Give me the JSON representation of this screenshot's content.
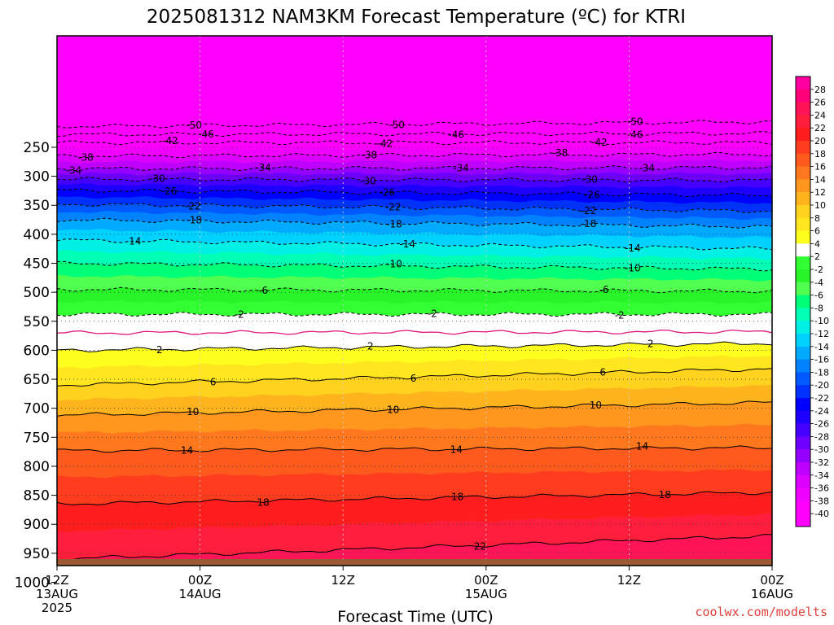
{
  "chart_data": {
    "type": "heatmap",
    "title": "2025081312 NAM3KM Forecast Temperature (ºC) for KTRI",
    "xlabel": "Forecast Time (UTC)",
    "ylabel": "",
    "credit": "coolwx.com/modelts",
    "x_ticks": [
      {
        "hour": 0,
        "lines": [
          "12Z",
          "13AUG",
          "2025"
        ]
      },
      {
        "hour": 12,
        "lines": [
          "00Z",
          "14AUG"
        ]
      },
      {
        "hour": 24,
        "lines": [
          "12Z"
        ]
      },
      {
        "hour": 36,
        "lines": [
          "00Z",
          "15AUG"
        ]
      },
      {
        "hour": 48,
        "lines": [
          "12Z"
        ]
      },
      {
        "hour": 60,
        "lines": [
          "00Z",
          "16AUG"
        ]
      }
    ],
    "xlim": [
      0,
      60
    ],
    "y_ticks": [
      250,
      300,
      350,
      400,
      450,
      500,
      550,
      600,
      650,
      700,
      750,
      800,
      850,
      900,
      950,
      1000
    ],
    "ylim_hPa": [
      200,
      1050
    ],
    "surface_pressure_hPa": 960,
    "colorbar_labels": [
      28,
      26,
      24,
      22,
      20,
      18,
      16,
      14,
      12,
      10,
      8,
      6,
      4,
      2,
      -2,
      -4,
      -6,
      -8,
      -10,
      -12,
      -14,
      -16,
      -18,
      -20,
      -22,
      -24,
      -26,
      -28,
      -30,
      -32,
      -34,
      -36,
      -38,
      -40
    ],
    "band_colors": {
      "28": "#ff00a0",
      "26": "#ff0078",
      "24": "#ff1458",
      "22": "#ff1e3c",
      "20": "#ff1e1e",
      "18": "#ff3c1e",
      "16": "#ff5a1e",
      "14": "#ff781e",
      "12": "#ff961e",
      "10": "#ffb41e",
      "8": "#ffd21e",
      "6": "#ffe61e",
      "4": "#ffff1e",
      "2": "#ffffff",
      "-2": "#32ff32",
      "-4": "#28f528",
      "-6": "#50ff50",
      "-8": "#00ff78",
      "-10": "#00ffb4",
      "-12": "#00f0e6",
      "-14": "#00d2ff",
      "-16": "#00aaff",
      "-18": "#0082ff",
      "-20": "#005aff",
      "-22": "#0032ff",
      "-24": "#0000ff",
      "-26": "#1e00ff",
      "-28": "#4600ff",
      "-30": "#6e00ff",
      "-32": "#9600ff",
      "-34": "#be00ff",
      "-36": "#dc00ff",
      "-38": "#f000ff",
      "-40": "#ff00ff"
    },
    "isotherms": [
      {
        "value": -50,
        "p0": 214,
        "p1": 206,
        "labels": [
          {
            "hour": 11.5,
            "text": "-50"
          },
          {
            "hour": 28.5,
            "text": "-50"
          },
          {
            "hour": 48.5,
            "text": "-50"
          }
        ]
      },
      {
        "value": -46,
        "p0": 228,
        "p1": 226,
        "labels": [
          {
            "hour": 12.5,
            "text": "-46"
          },
          {
            "hour": 33.5,
            "text": "-46"
          },
          {
            "hour": 48.5,
            "text": "-46"
          }
        ]
      },
      {
        "value": -42,
        "p0": 242,
        "p1": 242,
        "labels": [
          {
            "hour": 9.5,
            "text": "-42"
          },
          {
            "hour": 27.5,
            "text": "-42"
          },
          {
            "hour": 45.5,
            "text": "-42"
          }
        ]
      },
      {
        "value": -38,
        "p0": 265,
        "p1": 262,
        "labels": [
          {
            "hour": 2.4,
            "text": "-38"
          },
          {
            "hour": 26.2,
            "text": "-38"
          },
          {
            "hour": 42.2,
            "text": "-38"
          }
        ]
      },
      {
        "value": -34,
        "p0": 287,
        "p1": 285,
        "labels": [
          {
            "hour": 1.4,
            "text": "-34"
          },
          {
            "hour": 17.3,
            "text": "-34"
          },
          {
            "hour": 33.9,
            "text": "-34"
          },
          {
            "hour": 49.5,
            "text": "-34"
          }
        ]
      },
      {
        "value": -30,
        "p0": 305,
        "p1": 307,
        "labels": [
          {
            "hour": 8.4,
            "text": "-30"
          },
          {
            "hour": 26.1,
            "text": "-30"
          },
          {
            "hour": 44.7,
            "text": "-30"
          }
        ]
      },
      {
        "value": -26,
        "p0": 324,
        "p1": 333,
        "labels": [
          {
            "hour": 9.4,
            "text": "-26"
          },
          {
            "hour": 27.7,
            "text": "-26"
          },
          {
            "hour": 44.9,
            "text": "-26"
          }
        ]
      },
      {
        "value": -22,
        "p0": 348,
        "p1": 360,
        "labels": [
          {
            "hour": 11.4,
            "text": "-22"
          },
          {
            "hour": 28.2,
            "text": "-22"
          },
          {
            "hour": 44.6,
            "text": "-22"
          }
        ]
      },
      {
        "value": -18,
        "p0": 375,
        "p1": 387,
        "labels": [
          {
            "hour": 11.5,
            "text": "-18"
          },
          {
            "hour": 28.3,
            "text": "-18"
          },
          {
            "hour": 44.6,
            "text": "-18"
          }
        ]
      },
      {
        "value": -14,
        "p0": 410,
        "p1": 425,
        "labels": [
          {
            "hour": 6.4,
            "text": "-14"
          },
          {
            "hour": 29.4,
            "text": "-14"
          },
          {
            "hour": 48.3,
            "text": "-14"
          }
        ]
      },
      {
        "value": -10,
        "p0": 450,
        "p1": 460,
        "labels": [
          {
            "hour": 28.3,
            "text": "-10"
          },
          {
            "hour": 48.3,
            "text": "-10"
          }
        ]
      },
      {
        "value": -6,
        "p0": 495,
        "p1": 498,
        "labels": [
          {
            "hour": 17.3,
            "text": "-6"
          },
          {
            "hour": 45.9,
            "text": "-6"
          }
        ]
      },
      {
        "value": -2,
        "p0": 538,
        "p1": 538,
        "labels": [
          {
            "hour": 15.3,
            "text": "-2"
          },
          {
            "hour": 31.5,
            "text": "-2"
          },
          {
            "hour": 47.2,
            "text": "-2"
          }
        ]
      },
      {
        "value": 2,
        "p0": 600,
        "p1": 588,
        "labels": [
          {
            "hour": 8.6,
            "text": "2"
          },
          {
            "hour": 26.3,
            "text": "2"
          },
          {
            "hour": 49.8,
            "text": "2"
          }
        ]
      },
      {
        "value": 6,
        "p0": 660,
        "p1": 632,
        "labels": [
          {
            "hour": 13.1,
            "text": "6"
          },
          {
            "hour": 29.9,
            "text": "6"
          },
          {
            "hour": 45.8,
            "text": "6"
          }
        ]
      },
      {
        "value": 10,
        "p0": 712,
        "p1": 690,
        "labels": [
          {
            "hour": 11.4,
            "text": "10"
          },
          {
            "hour": 28.2,
            "text": "10"
          },
          {
            "hour": 45.2,
            "text": "10"
          }
        ]
      },
      {
        "value": 14,
        "p0": 773,
        "p1": 768,
        "labels": [
          {
            "hour": 10.9,
            "text": "14"
          },
          {
            "hour": 33.5,
            "text": "14"
          },
          {
            "hour": 49.1,
            "text": "14"
          }
        ]
      },
      {
        "value": 18,
        "p0": 865,
        "p1": 845,
        "labels": [
          {
            "hour": 17.3,
            "text": "18"
          },
          {
            "hour": 33.6,
            "text": "18"
          },
          {
            "hour": 51.0,
            "text": "18"
          }
        ]
      },
      {
        "value": 22,
        "p0": 960,
        "p1": 920,
        "labels": [
          {
            "hour": 35.5,
            "text": "22"
          }
        ]
      }
    ],
    "freezing_line": {
      "value": 0,
      "p0": 570,
      "p1": 568
    }
  }
}
